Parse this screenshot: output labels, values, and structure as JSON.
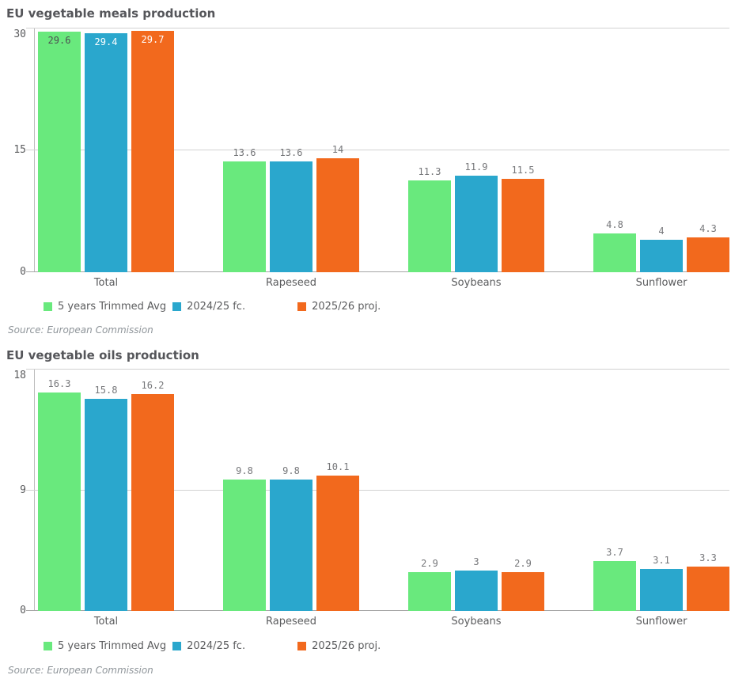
{
  "page": {
    "background": "#ffffff"
  },
  "colors": {
    "series_green": "#69e97d",
    "series_blue": "#2aa7cd",
    "series_orange": "#f2691d",
    "title_text": "#55565a",
    "axis_text": "#5b5c5e",
    "value_label_text": "#76777a",
    "source_text": "#8f959a"
  },
  "chart_data": [
    {
      "type": "bar",
      "title": "EU vegetable meals production",
      "categories": [
        "Total",
        "Rapeseed",
        "Soybeans",
        "Sunflower"
      ],
      "series": [
        {
          "name": "5 years Trimmed Avg",
          "color": "#69e97d",
          "inside_label_color": "#4d4f52",
          "values": [
            29.6,
            13.6,
            11.3,
            4.8
          ]
        },
        {
          "name": "2024/25 fc.",
          "color": "#2aa7cd",
          "inside_label_color": "#ffffff",
          "values": [
            29.4,
            13.6,
            11.9,
            4
          ]
        },
        {
          "name": "2025/26 proj.",
          "color": "#f2691d",
          "inside_label_color": "#ffffff",
          "values": [
            29.7,
            14,
            11.5,
            4.3
          ]
        }
      ],
      "ylim": [
        0,
        30
      ],
      "yticks": [
        0,
        15,
        30
      ],
      "grid": true,
      "legend_position": "bottom",
      "source": "Source: European Commission"
    },
    {
      "type": "bar",
      "title": "EU vegetable oils production",
      "categories": [
        "Total",
        "Rapeseed",
        "Soybeans",
        "Sunflower"
      ],
      "series": [
        {
          "name": "5 years Trimmed Avg",
          "color": "#69e97d",
          "inside_label_color": "#4d4f52",
          "values": [
            16.3,
            9.8,
            2.9,
            3.7
          ]
        },
        {
          "name": "2024/25 fc.",
          "color": "#2aa7cd",
          "inside_label_color": "#ffffff",
          "values": [
            15.8,
            9.8,
            3,
            3.1
          ]
        },
        {
          "name": "2025/26 proj.",
          "color": "#f2691d",
          "inside_label_color": "#ffffff",
          "values": [
            16.2,
            10.1,
            2.9,
            3.3
          ]
        }
      ],
      "ylim": [
        0,
        18
      ],
      "yticks": [
        0,
        9,
        18
      ],
      "grid": true,
      "legend_position": "bottom",
      "source": "Source: European Commission"
    }
  ]
}
